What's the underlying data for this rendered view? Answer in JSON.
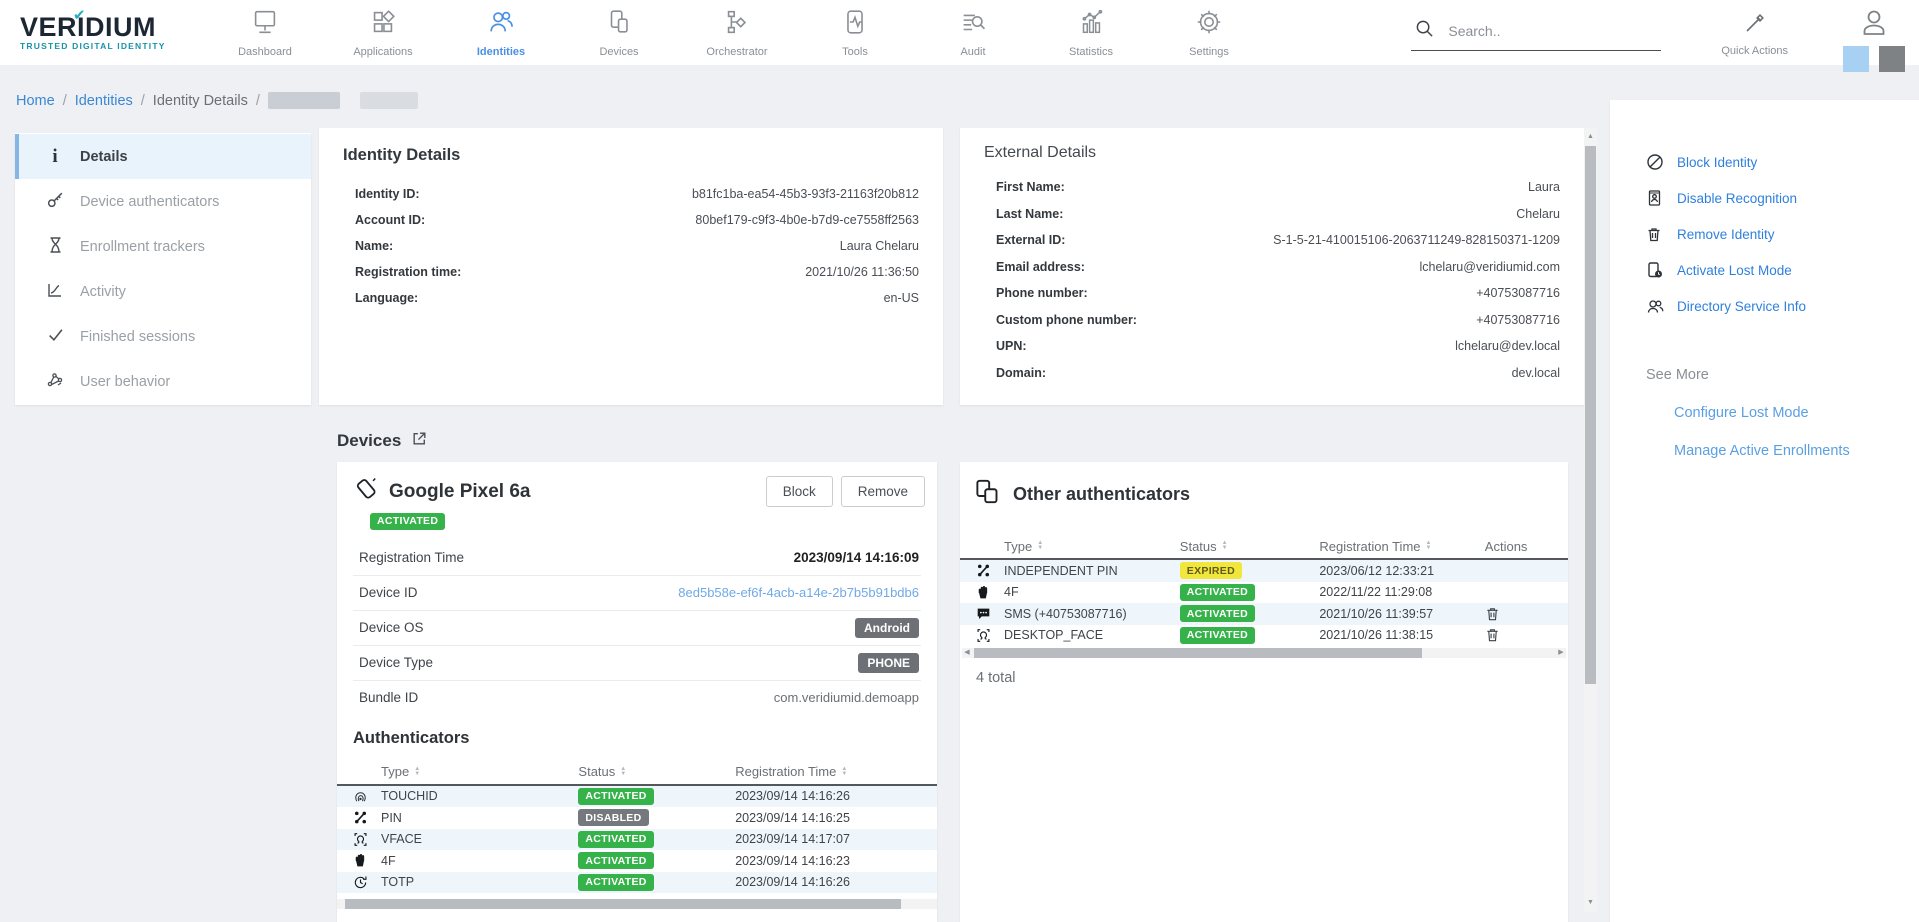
{
  "brand": {
    "name_pre": "VER",
    "name_i": "I",
    "name_post": "DIUM",
    "tagline": "TRUSTED DIGITAL IDENTITY"
  },
  "nav": {
    "items": [
      {
        "label": "Dashboard"
      },
      {
        "label": "Applications"
      },
      {
        "label": "Identities",
        "active": true
      },
      {
        "label": "Devices"
      },
      {
        "label": "Orchestrator"
      },
      {
        "label": "Tools"
      },
      {
        "label": "Audit"
      },
      {
        "label": "Statistics"
      },
      {
        "label": "Settings"
      }
    ]
  },
  "header": {
    "search_placeholder": "Search..",
    "quick_actions_label": "Quick Actions"
  },
  "breadcrumb": {
    "home": "Home",
    "identities": "Identities",
    "current": "Identity Details",
    "separator": "/"
  },
  "sidebar": {
    "items": [
      {
        "label": "Details",
        "active": true
      },
      {
        "label": "Device authenticators"
      },
      {
        "label": "Enrollment trackers"
      },
      {
        "label": "Activity"
      },
      {
        "label": "Finished sessions"
      },
      {
        "label": "User behavior"
      }
    ]
  },
  "identity_details": {
    "title": "Identity Details",
    "rows": [
      {
        "label": "Identity ID:",
        "value": "b81fc1ba-ea54-45b3-93f3-21163f20b812"
      },
      {
        "label": "Account ID:",
        "value": "80bef179-c9f3-4b0e-b7d9-ce7558ff2563"
      },
      {
        "label": "Name:",
        "value": "Laura Chelaru"
      },
      {
        "label": "Registration time:",
        "value": "2021/10/26 11:36:50"
      },
      {
        "label": "Language:",
        "value": "en-US"
      }
    ]
  },
  "external_details": {
    "title": "External Details",
    "rows": [
      {
        "label": "First Name:",
        "value": "Laura"
      },
      {
        "label": "Last Name:",
        "value": "Chelaru"
      },
      {
        "label": "External ID:",
        "value": "S-1-5-21-410015106-2063711249-828150371-1209"
      },
      {
        "label": "Email address:",
        "value": "lchelaru@veridiumid.com"
      },
      {
        "label": "Phone number:",
        "value": "+40753087716"
      },
      {
        "label": "Custom phone number:",
        "value": "+40753087716"
      },
      {
        "label": "UPN:",
        "value": "lchelaru@dev.local"
      },
      {
        "label": "Domain:",
        "value": "dev.local"
      }
    ]
  },
  "devices": {
    "section_title": "Devices",
    "device": {
      "name": "Google Pixel 6a",
      "status": "ACTIVATED",
      "block_label": "Block",
      "remove_label": "Remove",
      "rows": [
        {
          "label": "Registration Time",
          "value": "2023/09/14 14:16:09",
          "style": "val-bold"
        },
        {
          "label": "Device ID",
          "value": "8ed5b58e-ef6f-4acb-a14e-2b7b5b91bdb6",
          "style": "val-link"
        },
        {
          "label": "Device OS",
          "value": "Android",
          "style": "val-badge"
        },
        {
          "label": "Device Type",
          "value": "PHONE",
          "style": "val-badge"
        },
        {
          "label": "Bundle ID",
          "value": "com.veridiumid.demoapp",
          "style": "val-plain"
        }
      ]
    }
  },
  "authenticators": {
    "title": "Authenticators",
    "columns": [
      "Type",
      "Status",
      "Registration Time"
    ],
    "rows": [
      {
        "icon": "fingerprint",
        "type": "TOUCHID",
        "status": "ACTIVATED",
        "time": "2023/09/14 14:16:26"
      },
      {
        "icon": "pin",
        "type": "PIN",
        "status": "DISABLED",
        "time": "2023/09/14 14:16:25"
      },
      {
        "icon": "face",
        "type": "VFACE",
        "status": "ACTIVATED",
        "time": "2023/09/14 14:17:07"
      },
      {
        "icon": "hand",
        "type": "4F",
        "status": "ACTIVATED",
        "time": "2023/09/14 14:16:23"
      },
      {
        "icon": "totp",
        "type": "TOTP",
        "status": "ACTIVATED",
        "time": "2023/09/14 14:16:26"
      }
    ]
  },
  "other_authenticators": {
    "title": "Other authenticators",
    "columns": [
      "Type",
      "Status",
      "Registration Time",
      "Actions"
    ],
    "rows": [
      {
        "icon": "pin",
        "type": "INDEPENDENT PIN",
        "status": "EXPIRED",
        "time": "2023/06/12 12:33:21",
        "actions": false
      },
      {
        "icon": "hand",
        "type": "4F",
        "status": "ACTIVATED",
        "time": "2022/11/22 11:29:08",
        "actions": false
      },
      {
        "icon": "sms",
        "type": "SMS (+40753087716)",
        "status": "ACTIVATED",
        "time": "2021/10/26 11:39:57",
        "actions": true
      },
      {
        "icon": "face",
        "type": "DESKTOP_FACE",
        "status": "ACTIVATED",
        "time": "2021/10/26 11:38:15",
        "actions": true
      }
    ],
    "total": "4 total"
  },
  "actions": {
    "items": [
      {
        "label": "Block Identity",
        "icon": "block"
      },
      {
        "label": "Disable Recognition",
        "icon": "id-card"
      },
      {
        "label": "Remove Identity",
        "icon": "trash"
      },
      {
        "label": "Activate Lost Mode",
        "icon": "lost-mode"
      },
      {
        "label": "Directory Service Info",
        "icon": "directory-people"
      }
    ],
    "see_more": "See More",
    "more_links": [
      {
        "label": "Configure Lost Mode"
      },
      {
        "label": "Manage Active Enrollments"
      }
    ]
  },
  "colors": {
    "accent_blue": "#4a90e2",
    "link_blue": "#2f80dd",
    "light_link_blue": "#70a9e8",
    "status_green": "#36b24a",
    "status_yellow": "#f0e63c",
    "status_gray": "#75797e",
    "dark_badge": "#6d7176",
    "brand_teal": "#1693a8"
  }
}
